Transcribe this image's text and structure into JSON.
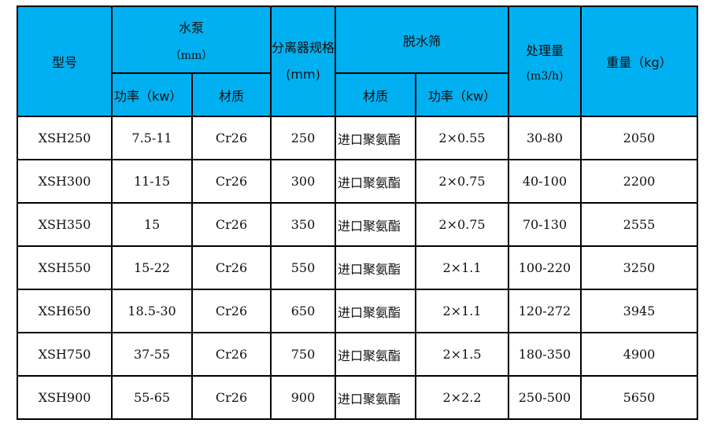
{
  "header": {
    "model": "型号",
    "pump": "水泵",
    "pump_unit": "（mm）",
    "pump_power": "功率（kw）",
    "pump_material": "材质",
    "separator": "分离器规格(mm)",
    "screen": "脱水筛",
    "screen_material": "材质",
    "screen_power": "功率（kw）",
    "capacity": "处理量",
    "capacity_unit": "(m3/h)",
    "weight": "重量（kg）"
  },
  "rows": [
    {
      "model": "XSH250",
      "pump_power": "7.5-11",
      "pump_material": "Cr26",
      "separator": "250",
      "screen_material": "进口聚氨酯",
      "screen_power": "2×0.55",
      "capacity": "30-80",
      "weight": "2050"
    },
    {
      "model": "XSH300",
      "pump_power": "11-15",
      "pump_material": "Cr26",
      "separator": "300",
      "screen_material": "进口聚氨酯",
      "screen_power": "2×0.75",
      "capacity": "40-100",
      "weight": "2200"
    },
    {
      "model": "XSH350",
      "pump_power": "15",
      "pump_material": "Cr26",
      "separator": "350",
      "screen_material": "进口聚氨酯",
      "screen_power": "2×0.75",
      "capacity": "70-130",
      "weight": "2555"
    },
    {
      "model": "XSH550",
      "pump_power": "15-22",
      "pump_material": "Cr26",
      "separator": "550",
      "screen_material": "进口聚氨酯",
      "screen_power": "2×1.1",
      "capacity": "100-220",
      "weight": "3250"
    },
    {
      "model": "XSH650",
      "pump_power": "18.5-30",
      "pump_material": "Cr26",
      "separator": "650",
      "screen_material": "进口聚氨酯",
      "screen_power": "2×1.1",
      "capacity": "120-272",
      "weight": "3945"
    },
    {
      "model": "XSH750",
      "pump_power": "37-55",
      "pump_material": "Cr26",
      "separator": "750",
      "screen_material": "进口聚氨酯",
      "screen_power": "2×1.5",
      "capacity": "180-350",
      "weight": "4900"
    },
    {
      "model": "XSH900",
      "pump_power": "55-65",
      "pump_material": "Cr26",
      "separator": "900",
      "screen_material": "进口聚氨酯",
      "screen_power": "2×2.2",
      "capacity": "250-500",
      "weight": "5650"
    }
  ],
  "colors": {
    "header_bg": "#00b0f0",
    "border": "#000000"
  }
}
